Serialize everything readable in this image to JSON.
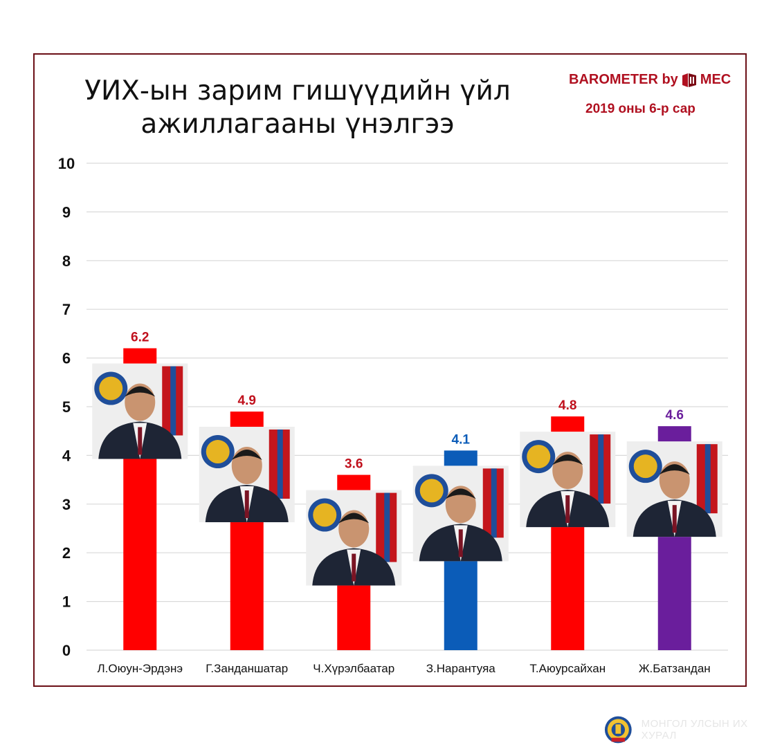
{
  "header": {
    "title_line1": "УИХ-ын зарим гишүүдийн үйл",
    "title_line2": "ажиллагааны үнэлгээ",
    "brand_left": "BAROMETER by",
    "brand_right": "MEC",
    "subtitle": "2019 оны 6-р сар"
  },
  "colors": {
    "red": "#ff0000",
    "blue": "#0b5cb8",
    "purple": "#6a1e9c",
    "brand": "#b01020",
    "frame": "#6b0f16"
  },
  "chart_data": {
    "type": "bar",
    "categories": [
      "Л.Оюун-Эрдэнэ",
      "Г.Занданшатар",
      "Ч.Хүрэлбаатар",
      "З.Нарантуяа",
      "Т.Аюурсайхан",
      "Ж.Батзандан"
    ],
    "values": [
      6.2,
      4.9,
      3.6,
      4.1,
      4.8,
      4.6
    ],
    "value_labels": [
      "6.2",
      "4.9",
      "3.6",
      "4.1",
      "4.8",
      "4.6"
    ],
    "bar_colors": [
      "#ff0000",
      "#ff0000",
      "#ff0000",
      "#0b5cb8",
      "#ff0000",
      "#6a1e9c"
    ],
    "label_colors": [
      "#c0101c",
      "#c0101c",
      "#c0101c",
      "#0b5cb8",
      "#c0101c",
      "#6a1e9c"
    ],
    "yticks": [
      "0",
      "1",
      "2",
      "3",
      "4",
      "5",
      "6",
      "7",
      "8",
      "9",
      "10"
    ],
    "ylim": [
      0,
      10
    ],
    "grid": true,
    "title": "УИХ-ын зарим гишүүдийн үйл ажиллагааны үнэлгээ",
    "xlabel": "",
    "ylabel": ""
  },
  "footer": {
    "text": "МОНГОЛ УЛСЫН ИХ ХУРАЛ",
    "emblem_icon": "state-emblem-icon"
  }
}
